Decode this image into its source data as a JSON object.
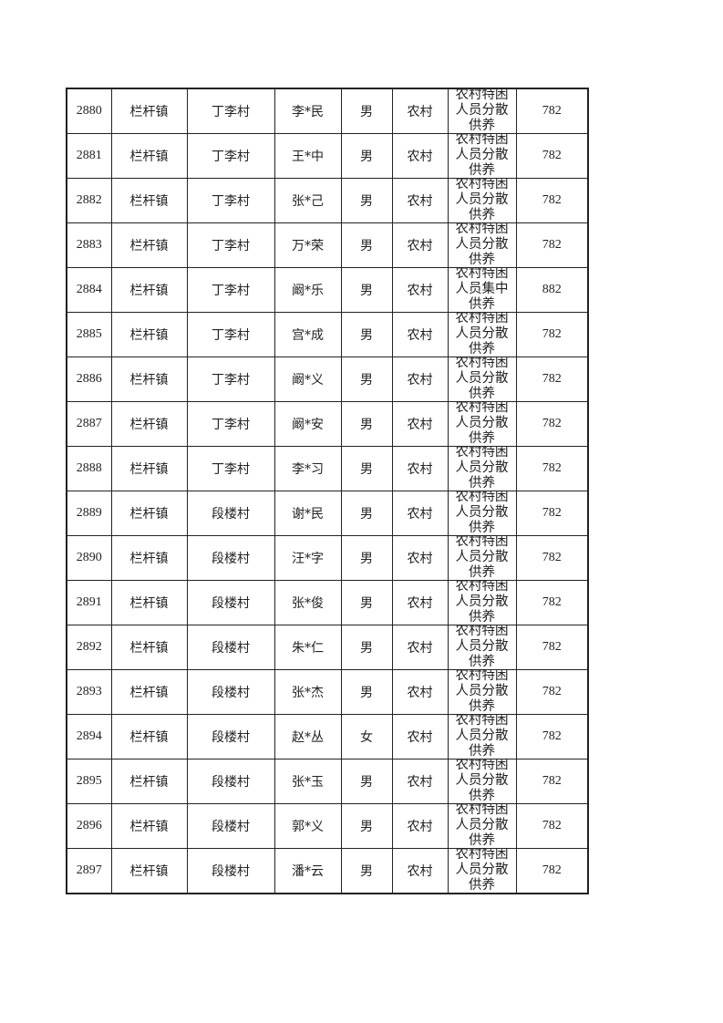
{
  "table": {
    "rows": [
      [
        "2880",
        "栏杆镇",
        "丁李村",
        "李*民",
        "男",
        "农村",
        "农村特困人员分散供养",
        "782"
      ],
      [
        "2881",
        "栏杆镇",
        "丁李村",
        "王*中",
        "男",
        "农村",
        "农村特困人员分散供养",
        "782"
      ],
      [
        "2882",
        "栏杆镇",
        "丁李村",
        "张*己",
        "男",
        "农村",
        "农村特困人员分散供养",
        "782"
      ],
      [
        "2883",
        "栏杆镇",
        "丁李村",
        "万*荣",
        "男",
        "农村",
        "农村特困人员分散供养",
        "782"
      ],
      [
        "2884",
        "栏杆镇",
        "丁李村",
        "阚*乐",
        "男",
        "农村",
        "农村特困人员集中供养",
        "882"
      ],
      [
        "2885",
        "栏杆镇",
        "丁李村",
        "宫*成",
        "男",
        "农村",
        "农村特困人员分散供养",
        "782"
      ],
      [
        "2886",
        "栏杆镇",
        "丁李村",
        "阚*义",
        "男",
        "农村",
        "农村特困人员分散供养",
        "782"
      ],
      [
        "2887",
        "栏杆镇",
        "丁李村",
        "阚*安",
        "男",
        "农村",
        "农村特困人员分散供养",
        "782"
      ],
      [
        "2888",
        "栏杆镇",
        "丁李村",
        "李*习",
        "男",
        "农村",
        "农村特困人员分散供养",
        "782"
      ],
      [
        "2889",
        "栏杆镇",
        "段楼村",
        "谢*民",
        "男",
        "农村",
        "农村特困人员分散供养",
        "782"
      ],
      [
        "2890",
        "栏杆镇",
        "段楼村",
        "汪*字",
        "男",
        "农村",
        "农村特困人员分散供养",
        "782"
      ],
      [
        "2891",
        "栏杆镇",
        "段楼村",
        "张*俊",
        "男",
        "农村",
        "农村特困人员分散供养",
        "782"
      ],
      [
        "2892",
        "栏杆镇",
        "段楼村",
        "朱*仁",
        "男",
        "农村",
        "农村特困人员分散供养",
        "782"
      ],
      [
        "2893",
        "栏杆镇",
        "段楼村",
        "张*杰",
        "男",
        "农村",
        "农村特困人员分散供养",
        "782"
      ],
      [
        "2894",
        "栏杆镇",
        "段楼村",
        "赵*丛",
        "女",
        "农村",
        "农村特困人员分散供养",
        "782"
      ],
      [
        "2895",
        "栏杆镇",
        "段楼村",
        "张*玉",
        "男",
        "农村",
        "农村特困人员分散供养",
        "782"
      ],
      [
        "2896",
        "栏杆镇",
        "段楼村",
        "郭*义",
        "男",
        "农村",
        "农村特困人员分散供养",
        "782"
      ],
      [
        "2897",
        "栏杆镇",
        "段楼村",
        "潘*云",
        "男",
        "农村",
        "农村特困人员分散供养",
        "782"
      ]
    ]
  }
}
